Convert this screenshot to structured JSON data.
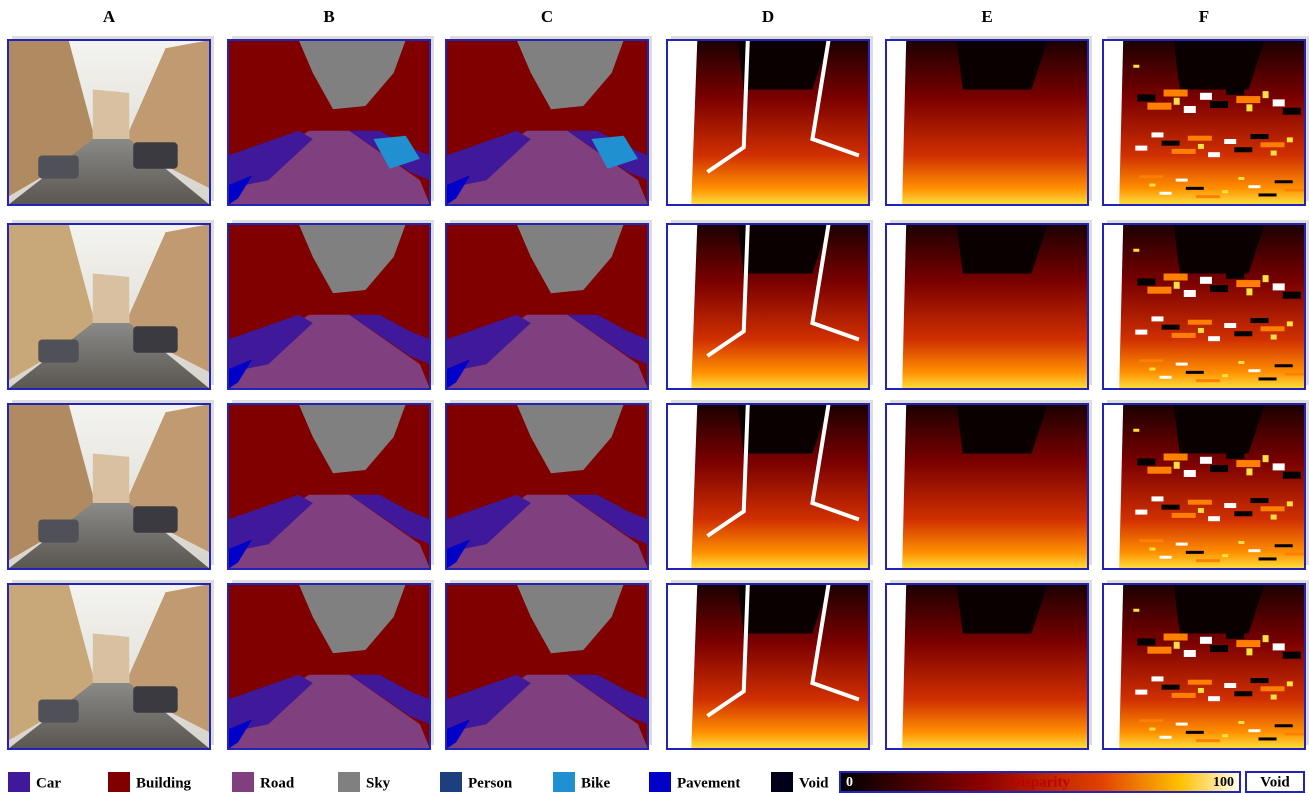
{
  "columns": [
    "A",
    "B",
    "C",
    "D",
    "E",
    "F"
  ],
  "legend": [
    {
      "label": "Car",
      "color": "#40189a"
    },
    {
      "label": "Building",
      "color": "#800000"
    },
    {
      "label": "Road",
      "color": "#804080"
    },
    {
      "label": "Sky",
      "color": "#808080"
    },
    {
      "label": "Person",
      "color": "#1c3f7e"
    },
    {
      "label": "Bike",
      "color": "#2090d0"
    },
    {
      "label": "Pavement",
      "color": "#0000c8"
    },
    {
      "label": "Void",
      "color": "#00001a"
    }
  ],
  "colorbar": {
    "min": 0,
    "label": "Disparity",
    "max": 100
  },
  "void_box": "Void"
}
